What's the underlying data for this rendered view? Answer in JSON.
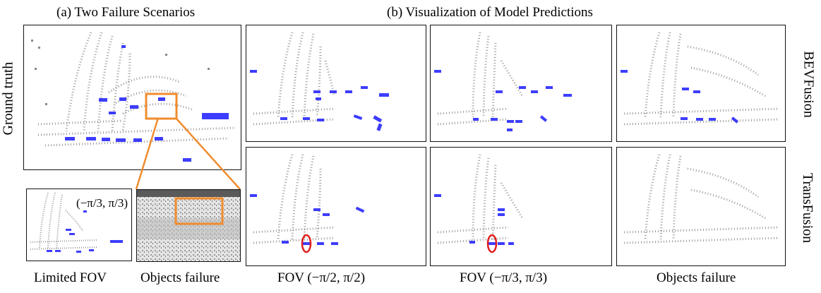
{
  "panel_a": {
    "title": "(a) Two Failure Scenarios"
  },
  "panel_b": {
    "title": "(b) Visualization of Model Predictions"
  },
  "row_labels": {
    "left": "Ground truth",
    "right_top": "BEVFusion",
    "right_bottom": "TransFusion"
  },
  "inset_fov_text": "(−π/3, π/3)",
  "bottom_labels": {
    "limited_fov": "Limited FOV",
    "objects_failure_a": "Objects failure",
    "fov_half": "FOV (−π/2,  π/2)",
    "fov_third": "FOV (−π/3,  π/3)",
    "objects_failure_b": "Objects failure"
  },
  "colors": {
    "points": "#8a8a8a",
    "boxes": "#3d3dff",
    "highlight": "#f08c2e",
    "circle": "#e02020"
  }
}
